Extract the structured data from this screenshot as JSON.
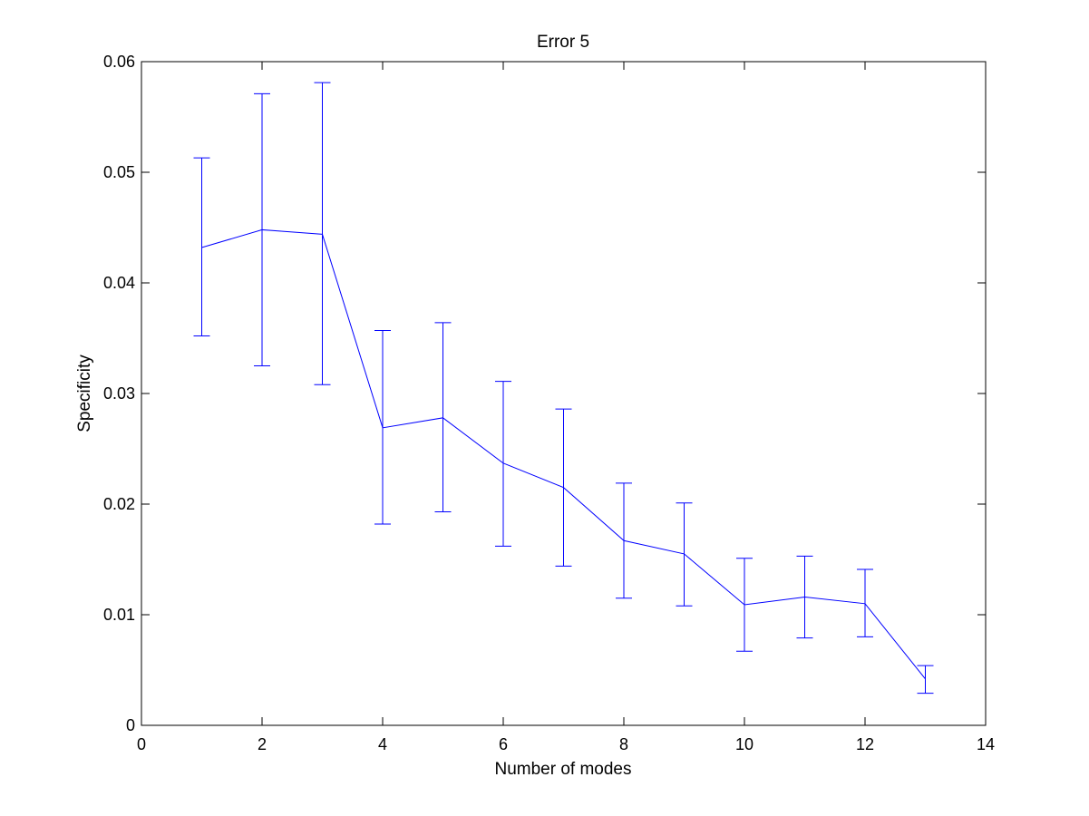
{
  "chart_data": {
    "type": "line",
    "title": "Error 5",
    "xlabel": "Number of modes",
    "ylabel": "Specificity",
    "xlim": [
      0,
      14
    ],
    "ylim": [
      0,
      0.06
    ],
    "xticks": [
      0,
      2,
      4,
      6,
      8,
      10,
      12,
      14
    ],
    "xtick_labels": [
      "0",
      "2",
      "4",
      "6",
      "8",
      "10",
      "12",
      "14"
    ],
    "yticks": [
      0,
      0.01,
      0.02,
      0.03,
      0.04,
      0.05,
      0.06
    ],
    "ytick_labels": [
      "0",
      "0.01",
      "0.02",
      "0.03",
      "0.04",
      "0.05",
      "0.06"
    ],
    "grid": false,
    "series": [
      {
        "color": "#0000ff",
        "x": [
          1,
          2,
          3,
          4,
          5,
          6,
          7,
          8,
          9,
          10,
          11,
          12,
          13
        ],
        "y": [
          0.0432,
          0.0448,
          0.0444,
          0.0269,
          0.0278,
          0.0237,
          0.0215,
          0.0167,
          0.0155,
          0.0109,
          0.0116,
          0.011,
          0.0042
        ],
        "err_low": [
          0.0352,
          0.0325,
          0.0308,
          0.0182,
          0.0193,
          0.0162,
          0.0144,
          0.0115,
          0.0108,
          0.0067,
          0.0079,
          0.008,
          0.0029
        ],
        "err_high": [
          0.0513,
          0.0571,
          0.0581,
          0.0357,
          0.0364,
          0.0311,
          0.0286,
          0.0219,
          0.0201,
          0.0151,
          0.0153,
          0.0141,
          0.0054
        ]
      }
    ]
  }
}
